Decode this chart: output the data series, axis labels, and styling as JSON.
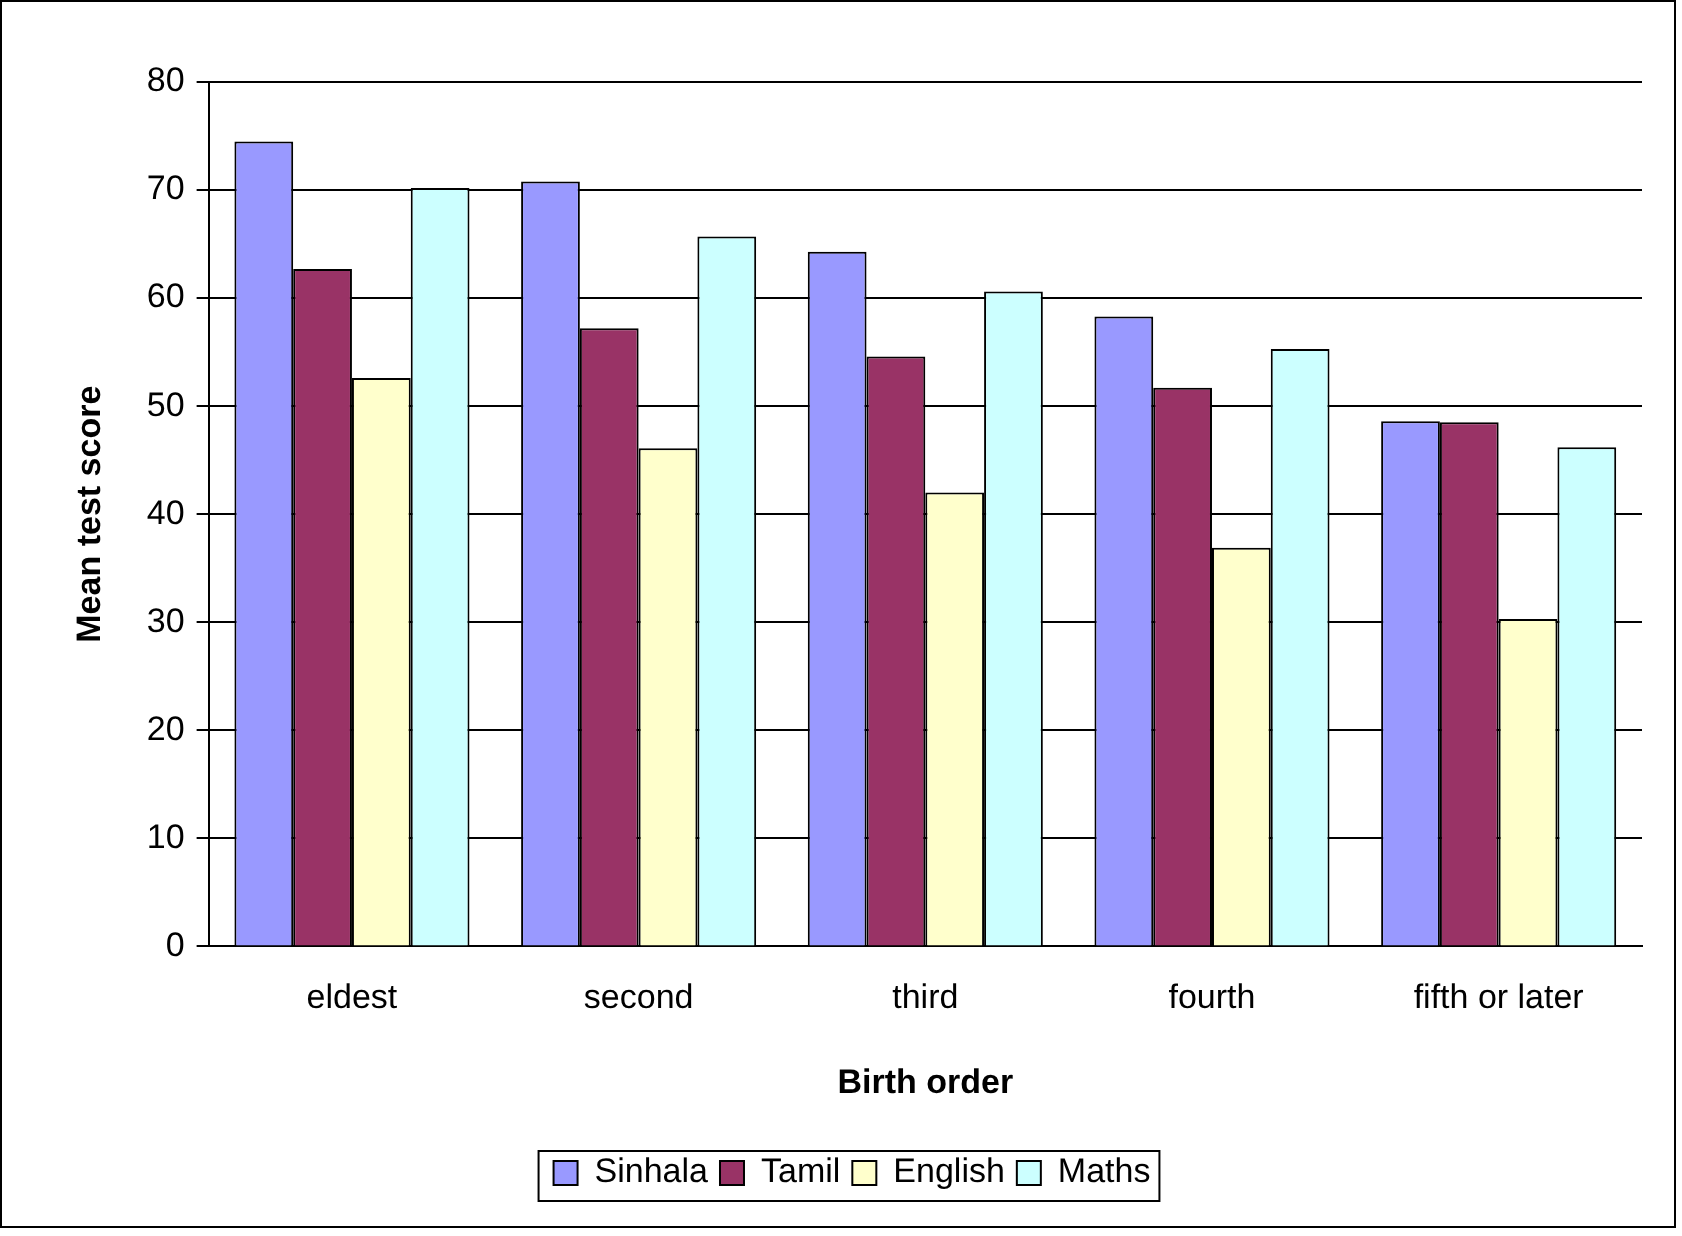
{
  "chart_data": {
    "type": "bar",
    "xlabel": "Birth order",
    "ylabel": "Mean test score",
    "categories": [
      "eldest",
      "second",
      "third",
      "fourth",
      "fifth or later"
    ],
    "series": [
      {
        "name": "Sinhala",
        "color": "#9999ff",
        "values": [
          74.5,
          70.8,
          64.3,
          58.3,
          48.6
        ]
      },
      {
        "name": "Tamil",
        "color": "#993366",
        "values": [
          62.7,
          57.2,
          54.6,
          51.7,
          48.5
        ]
      },
      {
        "name": "English",
        "color": "#ffffcc",
        "values": [
          52.6,
          46.1,
          42.0,
          36.9,
          30.3
        ]
      },
      {
        "name": "Maths",
        "color": "#ccffff",
        "values": [
          70.2,
          65.7,
          60.6,
          55.3,
          46.2
        ]
      }
    ],
    "ylim": [
      0,
      80
    ],
    "yticks": [
      0,
      10,
      20,
      30,
      40,
      50,
      60,
      70,
      80
    ],
    "grid": "y",
    "legend": "bottom"
  }
}
